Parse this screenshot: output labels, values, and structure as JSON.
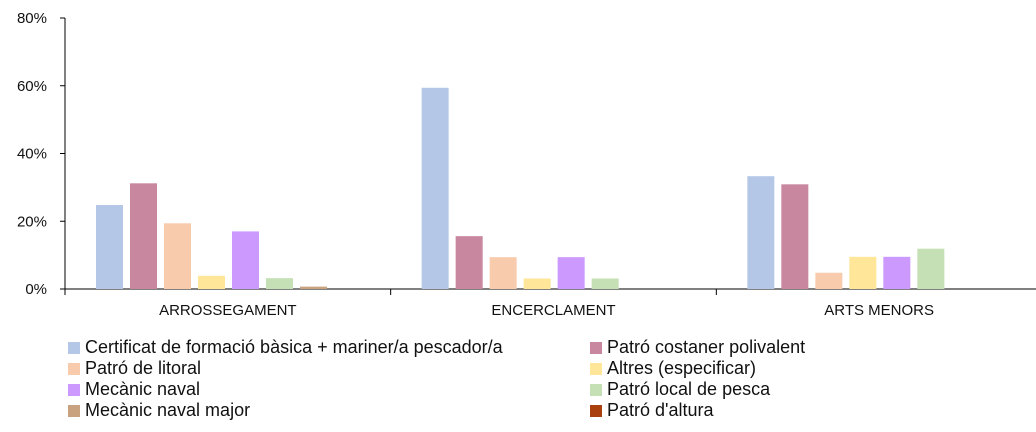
{
  "chart_data": {
    "type": "bar",
    "categories": [
      "ARROSSEGAMENT",
      "ENCERCLAMENT",
      "ARTS MENORS"
    ],
    "series": [
      {
        "name": "Certificat de formació bàsica + mariner/a pescador/a",
        "color": "#b4c7e7",
        "values": [
          24.8,
          59.4,
          33.3
        ]
      },
      {
        "name": "Patró costaner polivalent",
        "color": "#c9869f",
        "values": [
          31.2,
          15.6,
          30.9
        ]
      },
      {
        "name": "Patró de litoral",
        "color": "#f8cbad",
        "values": [
          19.4,
          9.4,
          4.8
        ]
      },
      {
        "name": "Altres (especificar)",
        "color": "#ffe699",
        "values": [
          3.9,
          3.1,
          9.5
        ]
      },
      {
        "name": "Mecànic naval",
        "color": "#cc99ff",
        "values": [
          17.0,
          9.4,
          9.5
        ]
      },
      {
        "name": "Patró local de pesca",
        "color": "#c5e0b4",
        "values": [
          3.2,
          3.1,
          11.9
        ]
      },
      {
        "name": "Mecànic naval major",
        "color": "#c9a37f",
        "values": [
          0.7,
          0,
          0
        ]
      },
      {
        "name": "Patró d'altura",
        "color": "#a9400e",
        "values": [
          0,
          0,
          0
        ]
      }
    ],
    "y_ticks": [
      "0%",
      "20%",
      "40%",
      "60%",
      "80%"
    ],
    "ylim": [
      0,
      80
    ],
    "title": "",
    "xlabel": "",
    "ylabel": "",
    "grid": false,
    "legend": "bottom"
  }
}
